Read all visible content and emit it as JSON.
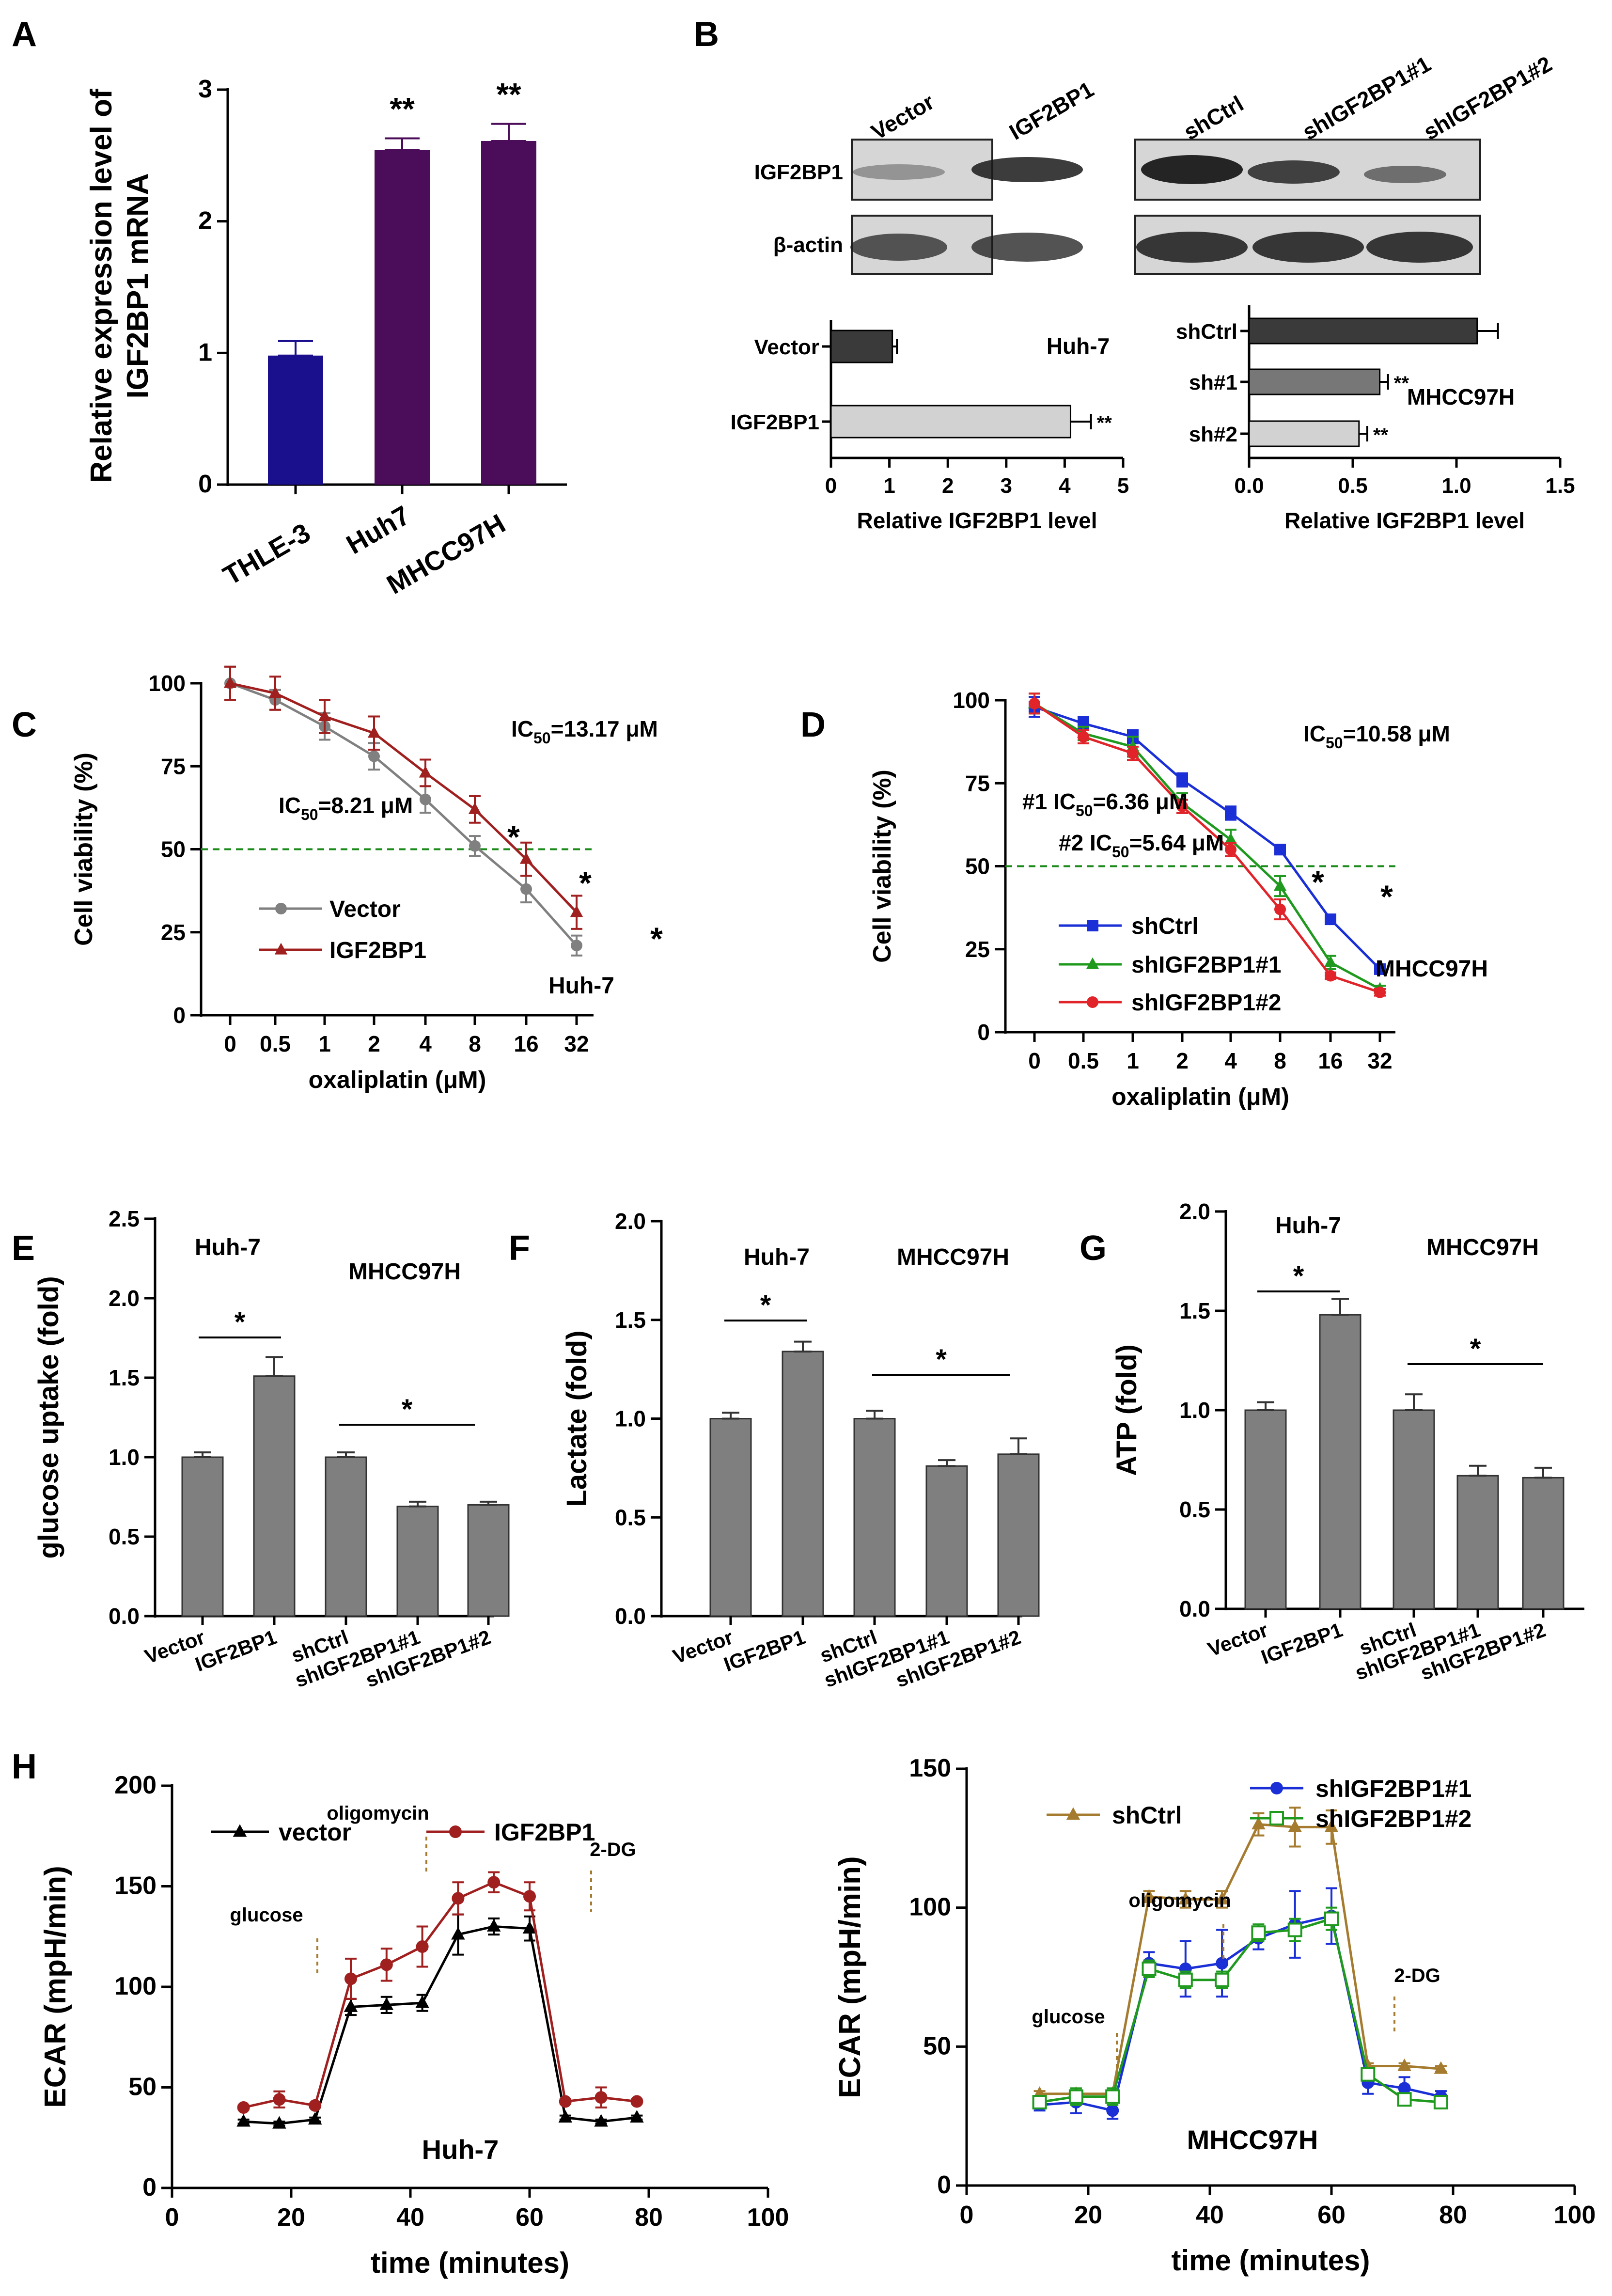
{
  "colors": {
    "navy": "#1a0f8c",
    "purple": "#4b0c5a",
    "grey": "#808080",
    "darkred": "#a01f1f",
    "green": "#1f9a1f",
    "red": "#e0242a",
    "blue": "#1a2fd6",
    "brown": "#a57b2f",
    "gray_bar": "#7f7f7f",
    "dark_bar": "#3a3a3a",
    "mid_bar": "#777777",
    "light_bar": "#d2d2d2",
    "dash": "#1a8a1a"
  },
  "chart_data": [
    {
      "panel": "A",
      "type": "bar",
      "categories": [
        "THLE-3",
        "Huh7",
        "MHCC97H"
      ],
      "values": [
        0.98,
        2.54,
        2.61
      ],
      "errors": [
        0.11,
        0.09,
        0.13
      ],
      "colors": [
        "navy",
        "purple",
        "purple"
      ],
      "sig": [
        "",
        "**",
        "**"
      ],
      "ylabel": [
        "Relative expression level of",
        "IGF2BP1 mRNA"
      ],
      "ylim": [
        0,
        3
      ],
      "yticks": [
        "0",
        "1",
        "2",
        "3"
      ]
    },
    {
      "panel": "B",
      "type": "bar",
      "orientation": "horizontal",
      "title": "Huh-7",
      "categories": [
        "Vector",
        "IGF2BP1"
      ],
      "values": [
        1.05,
        4.1
      ],
      "errors": [
        0.08,
        0.35
      ],
      "colors": [
        "dark_bar",
        "light_bar"
      ],
      "sig": [
        "",
        "**"
      ],
      "xlabel": "Relative IGF2BP1 level",
      "xlim": [
        0,
        5
      ],
      "xticks": [
        "0",
        "1",
        "2",
        "3",
        "4",
        "5"
      ]
    },
    {
      "panel": "B2",
      "type": "bar",
      "orientation": "horizontal",
      "title": "MHCC97H",
      "categories": [
        "shCtrl",
        "sh#1",
        "sh#2"
      ],
      "values": [
        1.1,
        0.63,
        0.53
      ],
      "errors": [
        0.1,
        0.04,
        0.04
      ],
      "colors": [
        "dark_bar",
        "mid_bar",
        "light_bar"
      ],
      "sig": [
        "",
        "**",
        "**"
      ],
      "xlabel": "Relative IGF2BP1 level",
      "xlim": [
        0,
        1.5
      ],
      "xticks": [
        "0.0",
        "0.5",
        "1.0",
        "1.5"
      ]
    },
    {
      "panel": "C",
      "type": "line",
      "title": "Huh-7",
      "categories": [
        "0",
        "0.5",
        "1",
        "2",
        "4",
        "8",
        "16",
        "32"
      ],
      "series": [
        {
          "name": "Vector",
          "color": "grey",
          "marker": "circle",
          "values": [
            100,
            95,
            87,
            78,
            65,
            51,
            38,
            21
          ],
          "errors": [
            5,
            3,
            4,
            4,
            4,
            3,
            4,
            3
          ]
        },
        {
          "name": "IGF2BP1",
          "color": "darkred",
          "marker": "triangle",
          "values": [
            100,
            97,
            90,
            85,
            73,
            62,
            47,
            31
          ],
          "errors": [
            5,
            5,
            5,
            5,
            4,
            4,
            5,
            5
          ]
        }
      ],
      "xlabel": "oxaliplatin (μM)",
      "ylabel": "Cell viability (%)",
      "ylim": [
        0,
        100
      ],
      "yticks": [
        "0",
        "25",
        "50",
        "75",
        "100"
      ],
      "hline": 50,
      "stars": [
        4,
        5,
        6
      ],
      "annotations": {
        "a1": "IC",
        "a1b": "50",
        "a1c": "=13.17 μM",
        "a2": "IC",
        "a2b": "50",
        "a2c": "=8.21 μM",
        "star": "*"
      }
    },
    {
      "panel": "D",
      "type": "line",
      "title": "MHCC97H",
      "categories": [
        "0",
        "0.5",
        "1",
        "2",
        "4",
        "8",
        "16",
        "32"
      ],
      "series": [
        {
          "name": "shCtrl",
          "color": "blue",
          "marker": "square",
          "values": [
            98,
            93,
            89,
            76,
            66,
            55,
            34,
            19
          ],
          "errors": [
            3,
            2,
            2,
            2,
            2,
            1,
            1,
            1
          ]
        },
        {
          "name": "shIGF2BP1#1",
          "color": "green",
          "marker": "triangle",
          "values": [
            99,
            90,
            86,
            69,
            58,
            44,
            21,
            13
          ],
          "errors": [
            3,
            2,
            3,
            3,
            3,
            3,
            2,
            1
          ]
        },
        {
          "name": "shIGF2BP1#2",
          "color": "red",
          "marker": "circle",
          "values": [
            99,
            89,
            84,
            68,
            55,
            37,
            17,
            12
          ],
          "errors": [
            3,
            2,
            2,
            2,
            2,
            3,
            1,
            1
          ]
        }
      ],
      "xlabel": "oxaliplatin (μM)",
      "ylabel": "Cell viability (%)",
      "ylim": [
        0,
        100
      ],
      "yticks": [
        "0",
        "25",
        "50",
        "75",
        "100"
      ],
      "hline": 50,
      "stars": [
        4,
        5
      ],
      "annotations": {
        "a1": "IC",
        "a1b": "50",
        "a1c": "=10.58 μM",
        "a2": "#1 IC",
        "a2b": "50",
        "a2c": "=6.36 μM",
        "a3": "#2 IC",
        "a3b": "50",
        "a3c": "=5.64 μM",
        "star": "*"
      }
    },
    {
      "panel": "E",
      "type": "bar",
      "categories": [
        "Vector",
        "IGF2BP1",
        "shCtrl",
        "shIGF2BP1#1",
        "shIGF2BP1#2"
      ],
      "values": [
        1.0,
        1.51,
        1.0,
        0.69,
        0.7
      ],
      "errors": [
        0.03,
        0.12,
        0.03,
        0.03,
        0.02
      ],
      "ylabel": "glucose uptake (fold)",
      "ylim": [
        0,
        2.5
      ],
      "yticks": [
        "0.0",
        "0.5",
        "1.0",
        "1.5",
        "2.0",
        "2.5"
      ],
      "labels": {
        "left": "Huh-7",
        "right": "MHCC97H",
        "star": "*"
      }
    },
    {
      "panel": "F",
      "type": "bar",
      "categories": [
        "Vector",
        "IGF2BP1",
        "shCtrl",
        "shIGF2BP1#1",
        "shIGF2BP1#2"
      ],
      "values": [
        1.0,
        1.34,
        1.0,
        0.76,
        0.82
      ],
      "errors": [
        0.03,
        0.05,
        0.04,
        0.03,
        0.08
      ],
      "ylabel": "Lactate (fold)",
      "ylim": [
        0,
        2.0
      ],
      "yticks": [
        "0.0",
        "0.5",
        "1.0",
        "1.5",
        "2.0"
      ],
      "labels": {
        "left": "Huh-7",
        "right": "MHCC97H",
        "star": "*"
      }
    },
    {
      "panel": "G",
      "type": "bar",
      "categories": [
        "Vector",
        "IGF2BP1",
        "shCtrl",
        "shIGF2BP1#1",
        "shIGF2BP1#2"
      ],
      "values": [
        1.0,
        1.48,
        1.0,
        0.67,
        0.66
      ],
      "errors": [
        0.04,
        0.08,
        0.08,
        0.05,
        0.05
      ],
      "ylabel": "ATP (fold)",
      "ylim": [
        0,
        2.0
      ],
      "yticks": [
        "0.0",
        "0.5",
        "1.0",
        "1.5",
        "2.0"
      ],
      "labels": {
        "left": "Huh-7",
        "right": "MHCC97H",
        "star": "*"
      }
    },
    {
      "panel": "H",
      "type": "line",
      "title": "Huh-7",
      "x": [
        12,
        18,
        24,
        30,
        36,
        42,
        48,
        54,
        60,
        66,
        72,
        78
      ],
      "series": [
        {
          "name": "vector",
          "color": "#000000",
          "marker": "triangle",
          "values": [
            33,
            32,
            34,
            90,
            91,
            92,
            126,
            130,
            129,
            35,
            33,
            35
          ],
          "errors": [
            1,
            1,
            1,
            4,
            4,
            4,
            10,
            4,
            6,
            1,
            1,
            1
          ]
        },
        {
          "name": "IGF2BP1",
          "color": "darkred",
          "marker": "circle",
          "values": [
            40,
            44,
            41,
            104,
            111,
            120,
            144,
            152,
            145,
            43,
            45,
            43
          ],
          "errors": [
            1,
            4,
            1,
            10,
            8,
            10,
            8,
            5,
            7,
            1,
            5,
            1
          ]
        }
      ],
      "xlabel": "time (minutes)",
      "ylabel": "ECAR (mpH/min)",
      "xlim": [
        0,
        100
      ],
      "ylim": [
        0,
        200
      ],
      "xticks": [
        "0",
        "20",
        "40",
        "60",
        "80",
        "100"
      ],
      "yticks": [
        "0",
        "50",
        "100",
        "150",
        "200"
      ],
      "labels": {
        "glucose": "glucose",
        "oligomycin": "oligomycin",
        "dg": "2-DG"
      }
    },
    {
      "panel": "H2",
      "type": "line",
      "title": "MHCC97H",
      "x": [
        12,
        18,
        24,
        30,
        36,
        42,
        48,
        54,
        60,
        66,
        72,
        78
      ],
      "series": [
        {
          "name": "shCtrl",
          "color": "brown",
          "marker": "triangle",
          "values": [
            33,
            33,
            33,
            104,
            103,
            103,
            130,
            129,
            129,
            43,
            43,
            42
          ],
          "errors": [
            1,
            1,
            1,
            2,
            3,
            3,
            4,
            7,
            6,
            1,
            1,
            1
          ]
        },
        {
          "name": "shIGF2BP1#1",
          "color": "blue",
          "marker": "circle",
          "values": [
            29,
            30,
            27,
            80,
            78,
            80,
            89,
            94,
            97,
            37,
            35,
            32
          ],
          "errors": [
            2,
            4,
            3,
            4,
            10,
            12,
            4,
            12,
            10,
            4,
            4,
            2
          ]
        },
        {
          "name": "shIGF2BP1#2",
          "color": "green",
          "marker": "square",
          "values": [
            30,
            32,
            32,
            78,
            74,
            74,
            91,
            92,
            96,
            40,
            31,
            30
          ],
          "errors": [
            2,
            3,
            3,
            3,
            3,
            3,
            3,
            4,
            4,
            2,
            2,
            1
          ]
        }
      ],
      "xlabel": "time (minutes)",
      "ylabel": "ECAR (mpH/min)",
      "xlim": [
        0,
        100
      ],
      "ylim": [
        0,
        150
      ],
      "xticks": [
        "0",
        "20",
        "40",
        "60",
        "80",
        "100"
      ],
      "yticks": [
        "0",
        "50",
        "100",
        "150"
      ],
      "labels": {
        "glucose": "glucose",
        "oligomycin": "oligomycin",
        "dg": "2-DG"
      }
    }
  ],
  "panel_letters": [
    "A",
    "B",
    "C",
    "D",
    "E",
    "F",
    "G",
    "H"
  ],
  "blot": {
    "left_lanes": [
      "Vector",
      "IGF2BP1"
    ],
    "right_lanes": [
      "shCtrl",
      "shIGF2BP1#1",
      "shIGF2BP1#2"
    ],
    "rows": [
      "IGF2BP1",
      "β-actin"
    ]
  }
}
